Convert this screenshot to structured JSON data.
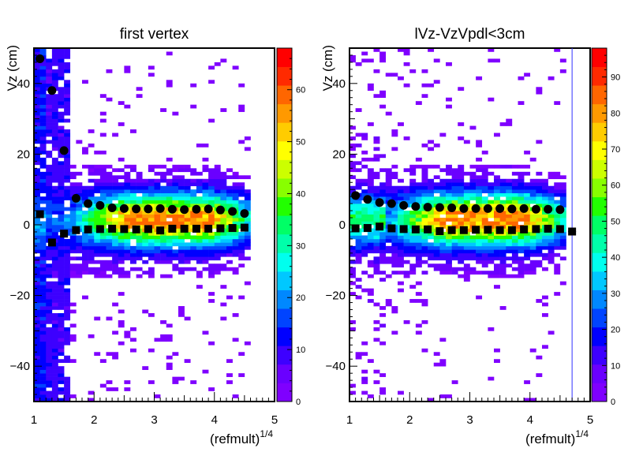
{
  "chart_data": [
    {
      "type": "heatmap",
      "title": "first vertex",
      "xlabel": "(refmult)",
      "xlabel_sup": "1/4",
      "ylabel": "Vz (cm)",
      "xlim": [
        1,
        5
      ],
      "ylim": [
        -50,
        50
      ],
      "x_ticks": [
        "1",
        "2",
        "3",
        "4",
        "5"
      ],
      "y_ticks": [
        "−40",
        "−20",
        "0",
        "20",
        "40"
      ],
      "colorbar": {
        "min": 0,
        "max": 68,
        "ticks": [
          "0",
          "10",
          "20",
          "30",
          "40",
          "50",
          "60"
        ]
      },
      "series": [
        {
          "marker": "circle",
          "x": [
            1.1,
            1.3,
            1.5,
            1.7,
            1.9,
            2.1,
            2.3,
            2.5,
            2.7,
            2.9,
            3.1,
            3.3,
            3.5,
            3.7,
            3.9,
            4.1,
            4.3,
            4.5
          ],
          "values": [
            47,
            38,
            21,
            7.5,
            6,
            5.5,
            4.8,
            4.6,
            4.5,
            4.5,
            4.6,
            4.4,
            4.3,
            4.4,
            4.5,
            4.2,
            3.8,
            3.2
          ]
        },
        {
          "marker": "square",
          "x": [
            1.1,
            1.3,
            1.5,
            1.7,
            1.9,
            2.1,
            2.3,
            2.5,
            2.7,
            2.9,
            3.1,
            3.3,
            3.5,
            3.7,
            3.9,
            4.1,
            4.3,
            4.5
          ],
          "values": [
            3,
            -5,
            -2.5,
            -1.5,
            -1.3,
            -1.2,
            -1.1,
            -1.2,
            -1.3,
            -1.2,
            -1.6,
            -1.1,
            -1.1,
            -1.1,
            -1.1,
            -1.0,
            -0.9,
            -0.8
          ]
        }
      ]
    },
    {
      "type": "heatmap",
      "title": "lVz-VzVpdl<3cm",
      "xlabel": "(refmult)",
      "xlabel_sup": "1/4",
      "ylabel": "Vz (cm)",
      "xlim": [
        1,
        5
      ],
      "ylim": [
        -50,
        50
      ],
      "x_ticks": [
        "1",
        "2",
        "3",
        "4",
        "5"
      ],
      "y_ticks": [
        "−40",
        "−20",
        "0",
        "20",
        "40"
      ],
      "colorbar": {
        "min": 0,
        "max": 98,
        "ticks": [
          "0",
          "10",
          "20",
          "30",
          "40",
          "50",
          "60",
          "70",
          "80",
          "90"
        ]
      },
      "vertical_line_x": 4.7,
      "series": [
        {
          "marker": "circle",
          "x": [
            1.1,
            1.3,
            1.5,
            1.7,
            1.9,
            2.1,
            2.3,
            2.5,
            2.7,
            2.9,
            3.1,
            3.3,
            3.5,
            3.7,
            3.9,
            4.1,
            4.3,
            4.5
          ],
          "values": [
            8.3,
            7.2,
            6.3,
            6.0,
            5.5,
            5.2,
            5.0,
            4.9,
            4.8,
            4.6,
            4.6,
            4.6,
            4.6,
            4.5,
            4.6,
            4.4,
            4.4,
            4.3
          ]
        },
        {
          "marker": "square",
          "x": [
            1.1,
            1.3,
            1.5,
            1.7,
            1.9,
            2.1,
            2.3,
            2.5,
            2.7,
            2.9,
            3.1,
            3.3,
            3.5,
            3.7,
            3.9,
            4.1,
            4.3,
            4.5,
            4.7
          ],
          "values": [
            -1.0,
            -0.9,
            -0.5,
            -1.0,
            -1.2,
            -1.3,
            -1.3,
            -1.8,
            -1.5,
            -1.5,
            -1.4,
            -1.4,
            -1.5,
            -1.5,
            -1.3,
            -1.2,
            -1.1,
            -1.2,
            -1.9
          ]
        }
      ]
    }
  ]
}
